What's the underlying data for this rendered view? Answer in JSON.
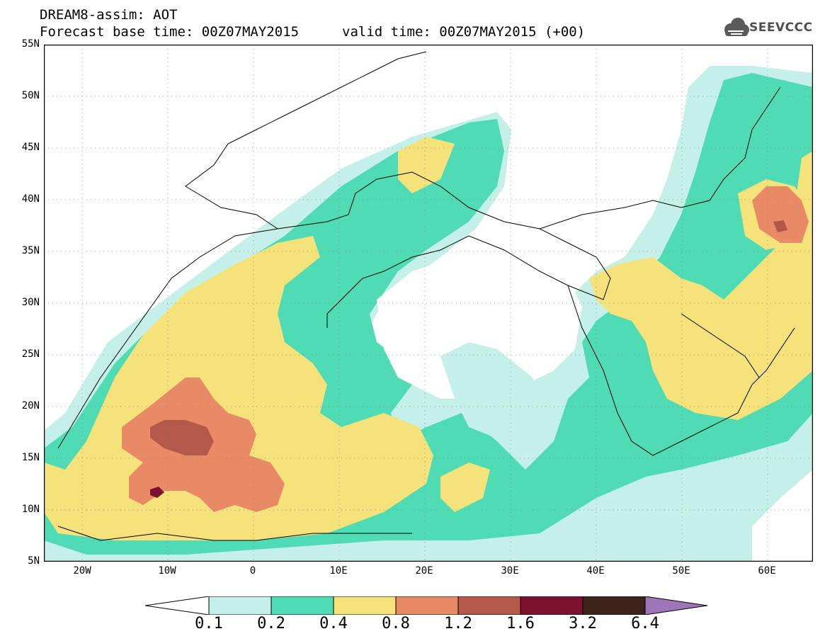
{
  "header": {
    "title_line1": "DREAM8-assim: AOT",
    "base_time": "Forecast base time: 00Z07MAY2015",
    "valid_time": "valid time: 00Z07MAY2015 (+00)"
  },
  "logo": {
    "text": "SEEVCCC",
    "icon": "cloud-logo-icon"
  },
  "map": {
    "lat_labels": [
      "55N",
      "50N",
      "45N",
      "40N",
      "35N",
      "30N",
      "25N",
      "20N",
      "15N",
      "10N",
      "5N"
    ],
    "lon_labels": [
      "20W",
      "10W",
      "0",
      "10E",
      "20E",
      "30E",
      "40E",
      "50E",
      "60E"
    ],
    "background": "#ffffff",
    "grid": true
  },
  "colorbar": {
    "labels": [
      "0.1",
      "0.2",
      "0.4",
      "0.8",
      "1.2",
      "1.6",
      "3.2",
      "6.4"
    ],
    "colors": [
      "#ffffff",
      "#c5efe9",
      "#4fdcb4",
      "#f5e27a",
      "#e88a66",
      "#b4584a",
      "#7d1230",
      "#3d2418",
      "#9f74b9"
    ]
  }
}
